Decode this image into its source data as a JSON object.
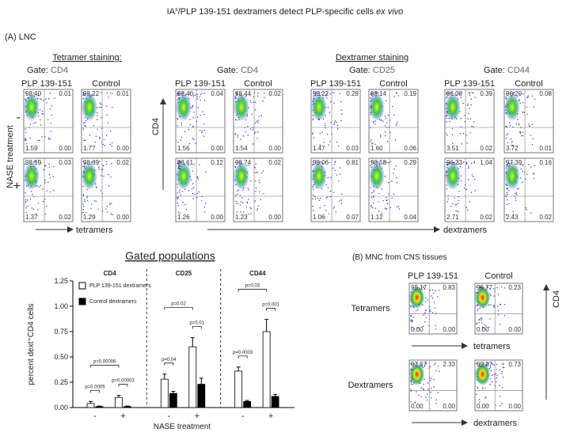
{
  "title": {
    "pre": "IA",
    "sup": "s",
    "mid": "/PLP 139-151 dextramers detect PLP-specific cells ",
    "italic": "ex vivo"
  },
  "panel_a": {
    "label": "(A) LNC",
    "tetramer_heading": "Tetramer staining:",
    "dextramer_heading": "Dextramer staining",
    "gates": [
      {
        "gate": "Gate:",
        "marker": "CD4"
      },
      {
        "gate": "Gate:",
        "marker": "CD4"
      },
      {
        "gate": "Gate:",
        "marker": "CD25"
      },
      {
        "gate": "Gate:",
        "marker": "CD44"
      }
    ],
    "columns": [
      "PLP 139-151",
      "Control",
      "PLP 139-151",
      "Control",
      "PLP 139-151",
      "Control",
      "PLP 139-151",
      "Control"
    ],
    "row_axis": "NASE treatment",
    "y_axis": "CD4",
    "x_axis_tetramers": "tetramers",
    "x_axis_dextramers": "dextramers",
    "rows": [
      {
        "label": "-",
        "plots": [
          [
            "98.40",
            "0.01",
            "1.59",
            "0.00"
          ],
          [
            "98.22",
            "0.01",
            "1.77",
            "0.00"
          ],
          [
            "98.40",
            "0.04",
            "1.56",
            "0.00"
          ],
          [
            "98.44",
            "0.02",
            "1.54",
            "0.00"
          ],
          [
            "98.22",
            "0.28",
            "1.47",
            "0.03"
          ],
          [
            "98.14",
            "0.19",
            "1.60",
            "0.06"
          ],
          [
            "96.08",
            "0.39",
            "3.51",
            "0.02"
          ],
          [
            "96.20",
            "0.08",
            "3.72",
            "0.01"
          ]
        ]
      },
      {
        "label": "+",
        "plots": [
          [
            "98.59",
            "0.03",
            "1.37",
            "0.02"
          ],
          [
            "98.69",
            "0.02",
            "1.29",
            "0.00"
          ],
          [
            "98.61",
            "0.12",
            "1.26",
            "0.00"
          ],
          [
            "98.74",
            "0.02",
            "1.23",
            "0.00"
          ],
          [
            "98.06",
            "0.81",
            "1.06",
            "0.07"
          ],
          [
            "98.58",
            "0.29",
            "1.12",
            "0.04"
          ],
          [
            "96.23",
            "1.04",
            "2.71",
            "0.02"
          ],
          [
            "97.39",
            "0.16",
            "2.43",
            "0.02"
          ]
        ]
      }
    ]
  },
  "chart_data": {
    "type": "bar",
    "title": "Gated populations",
    "ylabel": "percent dext⁺CD4 cells",
    "xlabel": "NASE treatment",
    "groups": [
      "CD4",
      "CD25",
      "CD44"
    ],
    "categories": [
      "-",
      "+",
      "-",
      "+",
      "-",
      "+"
    ],
    "series": [
      {
        "name": "PLP 139-151 dextramers",
        "color": "#ffffff",
        "values": [
          0.04,
          0.1,
          0.28,
          0.6,
          0.36,
          0.75
        ],
        "errors": [
          0.02,
          0.02,
          0.05,
          0.09,
          0.04,
          0.12
        ]
      },
      {
        "name": "Control dextramers",
        "color": "#000000",
        "values": [
          0.01,
          0.01,
          0.14,
          0.23,
          0.06,
          0.11
        ],
        "errors": [
          0.005,
          0.005,
          0.02,
          0.06,
          0.01,
          0.02
        ]
      }
    ],
    "ylim": [
      0,
      1.25
    ],
    "yticks": [
      {
        "value": 0,
        "label": "0.00"
      },
      {
        "value": 0.25,
        "label": "0.25"
      },
      {
        "value": 0.5,
        "label": "0.50"
      },
      {
        "value": 0.75,
        "label": "0.75"
      },
      {
        "value": 1,
        "label": "1.00"
      },
      {
        "value": 1.25,
        "label": "1.25"
      }
    ],
    "annotations": [
      "p=0.00006",
      "p=0.0005",
      "p=0.00003",
      "p=0.02",
      "p=0.04",
      "p=0.01",
      "p=0.03",
      "p=0.0003",
      "p=0.001"
    ]
  },
  "panel_b": {
    "label": "(B) MNC from CNS tissues",
    "columns": [
      "PLP 139-151",
      "Control"
    ],
    "y_axis": "CD4",
    "x_axis_tetramers": "tetramers",
    "x_axis_dextramers": "dextramers",
    "rows": [
      {
        "label": "Tetramers",
        "plots": [
          [
            "99.17",
            "0.83",
            "0.00",
            "0.00"
          ],
          [
            "99.77",
            "0.23",
            "0.00",
            "0.00"
          ]
        ]
      },
      {
        "label": "Dextramers",
        "plots": [
          [
            "97.67",
            "2.33",
            "0.00",
            "0.00"
          ],
          [
            "99.27",
            "0.73",
            "0.00",
            "0.00"
          ]
        ]
      }
    ]
  }
}
